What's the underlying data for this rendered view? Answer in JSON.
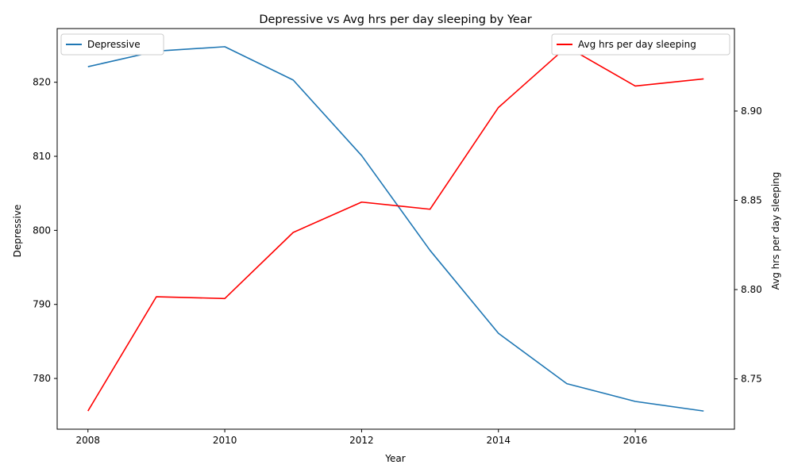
{
  "chart_data": {
    "type": "line",
    "title": "Depressive vs Avg hrs per day sleeping by Year",
    "xlabel": "Year",
    "ylabel_left": "Depressive",
    "ylabel_right": "Avg hrs per day sleeping",
    "x": [
      2008,
      2009,
      2010,
      2011,
      2012,
      2013,
      2014,
      2015,
      2016,
      2017
    ],
    "x_ticks": [
      "2008",
      "2010",
      "2012",
      "2014",
      "2016"
    ],
    "xlim": [
      2007.55,
      2017.45
    ],
    "series": [
      {
        "name": "Depressive",
        "axis": "left",
        "color": "#1f77b4",
        "values": [
          822.1,
          824.2,
          824.8,
          820.3,
          810.1,
          797.3,
          786.1,
          779.3,
          776.9,
          775.6
        ]
      },
      {
        "name": "Avg hrs per day sleeping",
        "axis": "right",
        "color": "#ff0000",
        "values": [
          8.732,
          8.796,
          8.795,
          8.832,
          8.849,
          8.845,
          8.902,
          8.936,
          8.914,
          8.918
        ]
      }
    ],
    "left_ticks": [
      "780",
      "790",
      "800",
      "810",
      "820"
    ],
    "left_ylim": [
      773.15,
      827.25
    ],
    "right_ticks": [
      "8.75",
      "8.80",
      "8.85",
      "8.90"
    ],
    "right_ylim": [
      8.7218,
      8.9462
    ],
    "legend_left_position": "upper-left",
    "legend_right_position": "upper-right",
    "grid": false
  }
}
